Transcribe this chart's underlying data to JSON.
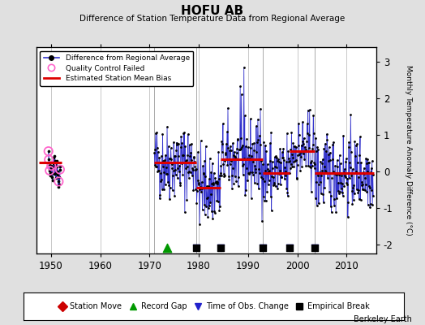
{
  "title": "HOFU AB",
  "subtitle": "Difference of Station Temperature Data from Regional Average",
  "ylabel": "Monthly Temperature Anomaly Difference (°C)",
  "xlabel_years": [
    1950,
    1960,
    1970,
    1980,
    1990,
    2000,
    2010
  ],
  "ylim": [
    -2.25,
    3.4
  ],
  "xlim": [
    1947,
    2016
  ],
  "background_color": "#e0e0e0",
  "plot_bg_color": "#ffffff",
  "grid_color": "#c0c0c0",
  "watermark": "Berkeley Earth",
  "segments": [
    {
      "x_start": 1947.5,
      "x_end": 1952.2,
      "bias": 0.25,
      "color": "#dd0000"
    },
    {
      "x_start": 1971.0,
      "x_end": 1979.5,
      "bias": 0.25,
      "color": "#dd0000"
    },
    {
      "x_start": 1979.5,
      "x_end": 1984.5,
      "bias": -0.45,
      "color": "#dd0000"
    },
    {
      "x_start": 1984.5,
      "x_end": 1993.0,
      "bias": 0.32,
      "color": "#dd0000"
    },
    {
      "x_start": 1993.0,
      "x_end": 1998.5,
      "bias": -0.05,
      "color": "#dd0000"
    },
    {
      "x_start": 1998.5,
      "x_end": 2003.5,
      "bias": 0.55,
      "color": "#dd0000"
    },
    {
      "x_start": 2003.5,
      "x_end": 2015.5,
      "bias": -0.05,
      "color": "#dd0000"
    }
  ],
  "vertical_lines": [
    1971.0,
    1979.5,
    1993.0,
    2003.5
  ],
  "record_gap_x": 1973.5,
  "record_gap_y": -2.1,
  "obs_change_x": [
    1979.5,
    1984.5,
    1993.0,
    1998.5,
    2003.5
  ],
  "obs_change_y": -2.1,
  "empirical_break_x": [
    1979.5,
    1984.5,
    1993.0,
    1998.5,
    2003.5
  ],
  "empirical_break_y": -2.1,
  "seed": 42,
  "early_x_start": 1949.5,
  "early_x_end": 1952.2,
  "main_x_start": 1971.0,
  "main_x_end": 2015.5
}
